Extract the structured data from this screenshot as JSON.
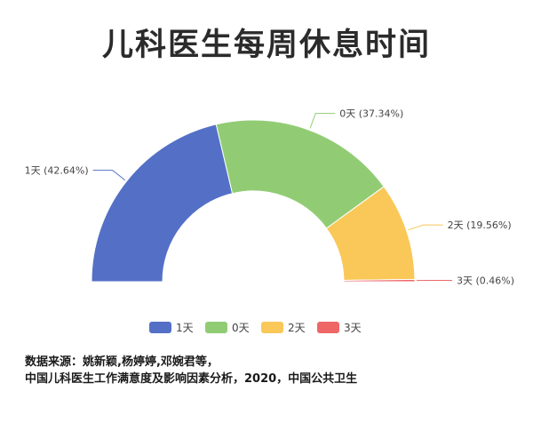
{
  "chart_data": {
    "type": "pie",
    "variant": "half-doughnut",
    "title": "儿科医生每周休息时间",
    "categories": [
      "1天",
      "0天",
      "2天",
      "3天"
    ],
    "values": [
      42.64,
      37.34,
      19.56,
      0.46
    ],
    "labels": [
      "1天 (42.64%)",
      "0天 (37.34%)",
      "2天 (19.56%)",
      "3天 (0.46%)"
    ],
    "colors": [
      "#5470c6",
      "#91cc75",
      "#fac858",
      "#ee6666"
    ],
    "legend": {
      "position": "bottom",
      "items": [
        "1天",
        "0天",
        "2天",
        "3天"
      ]
    }
  },
  "source": {
    "line1": "数据来源：姚新颖,杨婷婷,邓婉君等，",
    "line2": "中国儿科医生工作满意度及影响因素分析，2020，中国公共卫生"
  }
}
